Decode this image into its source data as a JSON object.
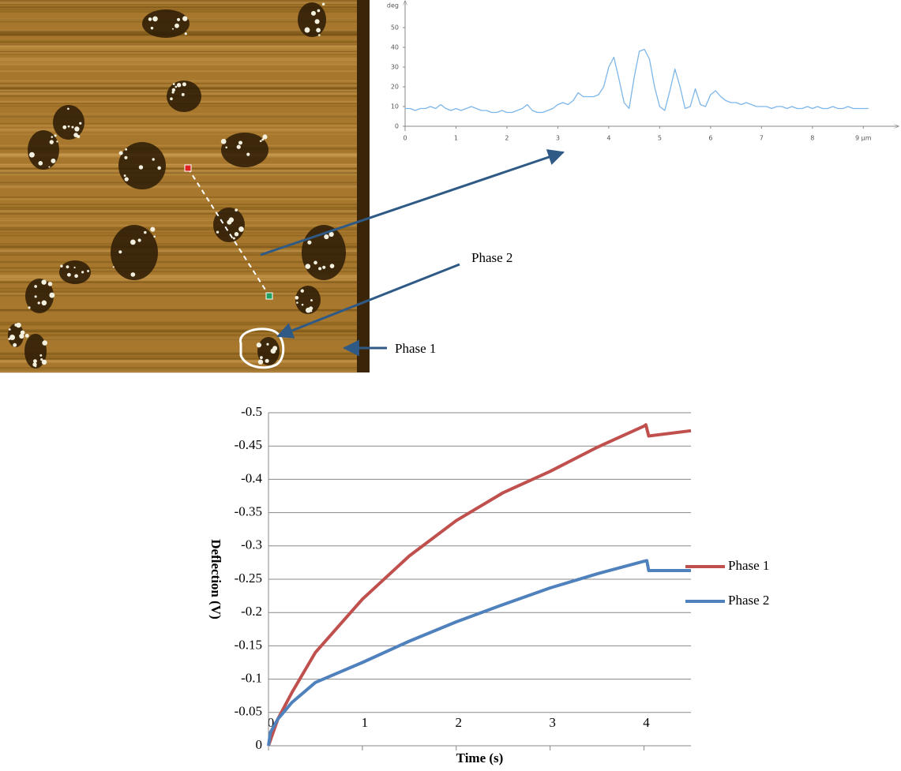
{
  "chart_data": [
    {
      "type": "line",
      "y_label": "deg",
      "xlim": [
        0,
        9.6
      ],
      "ylim": [
        0,
        62
      ],
      "xticks": [
        0,
        1,
        2,
        3,
        4,
        5,
        6,
        7,
        8,
        {
          "value": 9,
          "label": "9 μm"
        }
      ],
      "yticks": [
        0,
        10,
        20,
        30,
        40,
        50
      ],
      "grid": false,
      "series": [
        {
          "color": "#7db6e8",
          "x": [
            0,
            0.1,
            0.2,
            0.3,
            0.4,
            0.5,
            0.6,
            0.7,
            0.8,
            0.9,
            1,
            1.1,
            1.2,
            1.3,
            1.4,
            1.5,
            1.6,
            1.7,
            1.8,
            1.9,
            2,
            2.1,
            2.2,
            2.3,
            2.4,
            2.5,
            2.6,
            2.7,
            2.8,
            2.9,
            3,
            3.1,
            3.2,
            3.3,
            3.4,
            3.5,
            3.6,
            3.7,
            3.8,
            3.9,
            4,
            4.1,
            4.2,
            4.3,
            4.4,
            4.5,
            4.6,
            4.7,
            4.8,
            4.9,
            5,
            5.1,
            5.2,
            5.3,
            5.4,
            5.5,
            5.6,
            5.7,
            5.8,
            5.9,
            6,
            6.1,
            6.2,
            6.3,
            6.4,
            6.5,
            6.6,
            6.7,
            6.8,
            6.9,
            7,
            7.1,
            7.2,
            7.3,
            7.4,
            7.5,
            7.6,
            7.7,
            7.8,
            7.9,
            8,
            8.1,
            8.2,
            8.3,
            8.4,
            8.5,
            8.6,
            8.7,
            8.8,
            8.9,
            9,
            9.1
          ],
          "values": [
            9,
            9,
            8,
            9,
            9,
            10,
            9,
            11,
            9,
            8,
            9,
            8,
            9,
            10,
            9,
            8,
            8,
            7,
            7,
            8,
            7,
            7,
            8,
            9,
            11,
            8,
            7,
            7,
            8,
            9,
            11,
            12,
            11,
            13,
            17,
            15,
            15,
            15,
            16,
            20,
            30,
            35,
            24,
            12,
            9,
            25,
            38,
            39,
            34,
            20,
            10,
            8,
            18,
            29,
            20,
            9,
            10,
            19,
            11,
            10,
            16,
            18,
            15,
            13,
            12,
            12,
            11,
            12,
            11,
            10,
            10,
            10,
            9,
            10,
            10,
            9,
            10,
            9,
            9,
            10,
            9,
            10,
            9,
            9,
            10,
            9,
            9,
            10,
            9,
            9,
            9,
            9
          ]
        }
      ]
    },
    {
      "type": "line",
      "x_label": "Time (s)",
      "y_label": "Deflection (V)",
      "xlim": [
        0,
        4.5
      ],
      "ylim": [
        0,
        -0.5
      ],
      "xticks": [
        0,
        1,
        2,
        3,
        4
      ],
      "yticks": [
        0,
        -0.05,
        -0.1,
        -0.15,
        -0.2,
        -0.25,
        -0.3,
        -0.35,
        -0.4,
        -0.45,
        -0.5
      ],
      "grid": true,
      "legend": "right",
      "series": [
        {
          "name": "Phase 1",
          "color": "#c0504d",
          "x": [
            0,
            0.05,
            0.1,
            0.25,
            0.5,
            1,
            1.5,
            2,
            2.5,
            3,
            3.5,
            4,
            4.02,
            4.05,
            4.5
          ],
          "values": [
            0,
            -0.02,
            -0.04,
            -0.08,
            -0.14,
            -0.22,
            -0.285,
            -0.338,
            -0.38,
            -0.412,
            -0.448,
            -0.48,
            -0.482,
            -0.465,
            -0.473
          ]
        },
        {
          "name": "Phase 2",
          "color": "#4f81bd",
          "x": [
            0,
            0.02,
            0.1,
            0.25,
            0.5,
            1,
            1.5,
            2,
            2.5,
            3,
            3.5,
            4,
            4.03,
            4.05,
            4.5
          ],
          "values": [
            0,
            -0.02,
            -0.04,
            -0.065,
            -0.095,
            -0.125,
            -0.157,
            -0.186,
            -0.212,
            -0.237,
            -0.258,
            -0.277,
            -0.278,
            -0.263,
            -0.263
          ]
        }
      ]
    }
  ],
  "annotations": [
    "Phase 2",
    "Phase 1"
  ]
}
